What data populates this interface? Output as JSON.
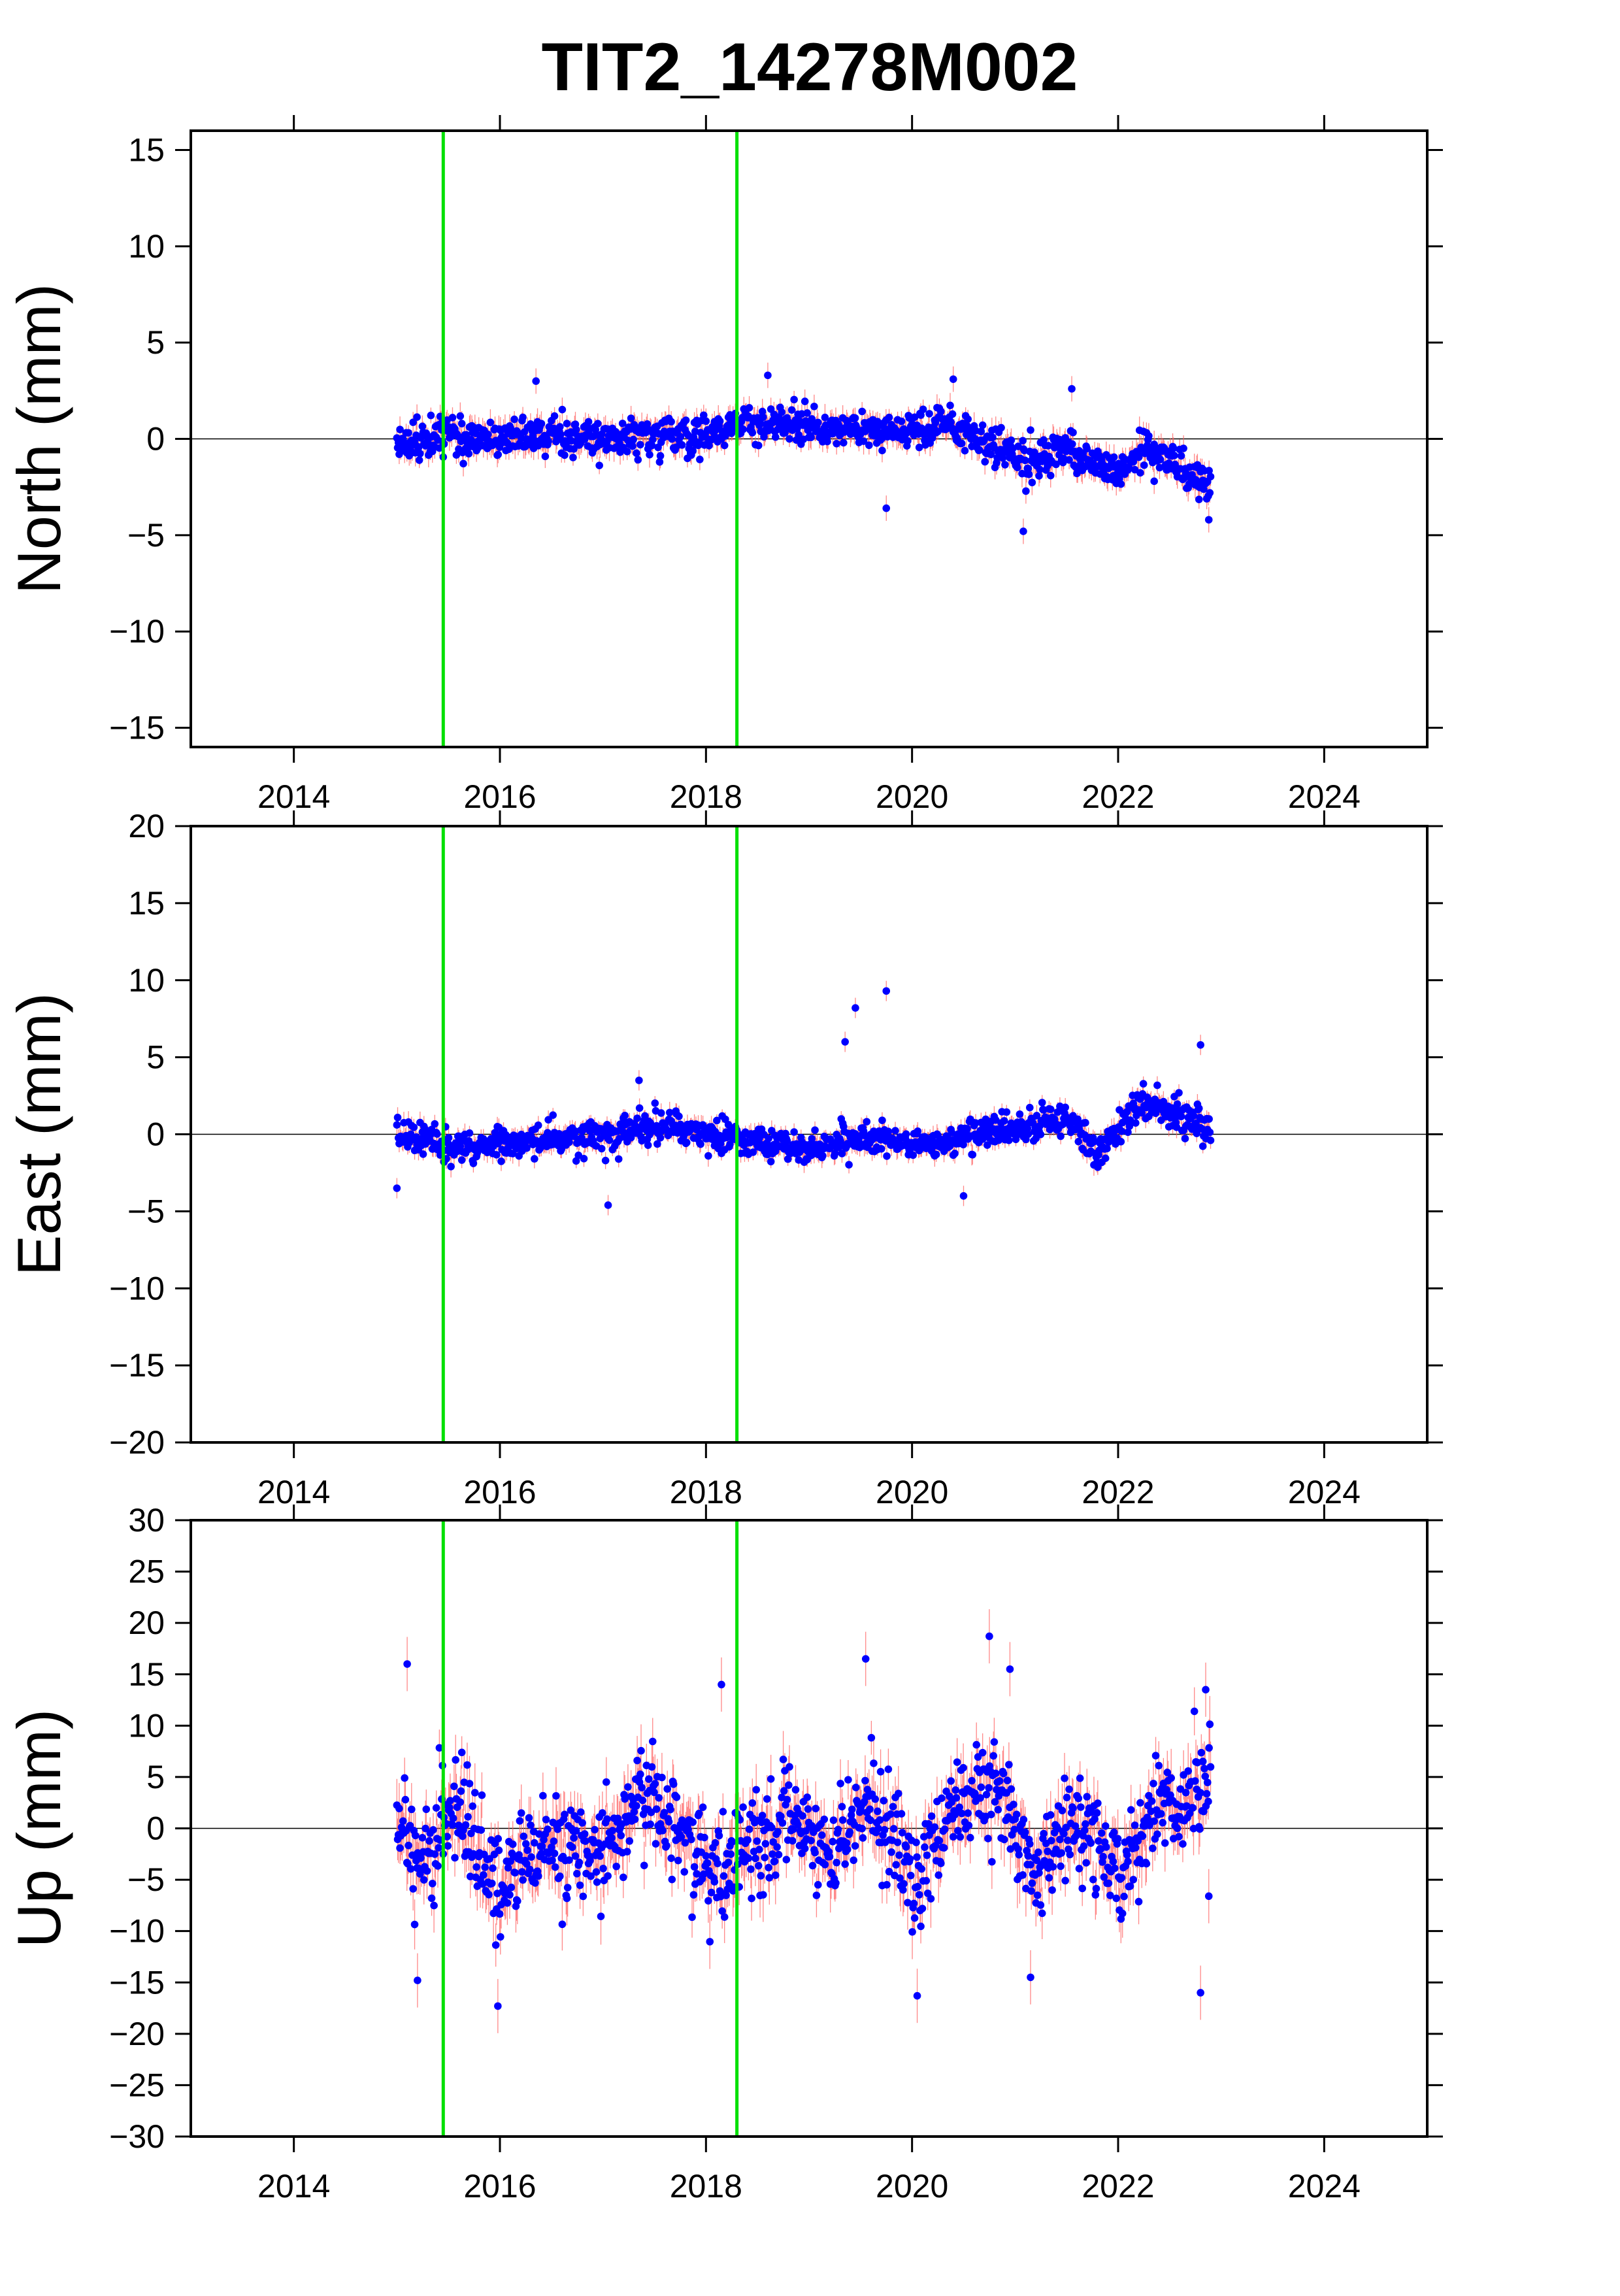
{
  "title": "TIT2_14278M002",
  "colors": {
    "points": "#0000ff",
    "error_bars": "#ff6060",
    "offset_lines": "#00e000",
    "zero_line": "#000000",
    "frame": "#000000"
  },
  "chart_data": [
    {
      "type": "scatter",
      "panel": "north",
      "ylabel": "North (mm)",
      "xlim": [
        2013,
        2025
      ],
      "ylim": [
        -16,
        16
      ],
      "xticks": [
        2014,
        2016,
        2018,
        2020,
        2022,
        2024
      ],
      "yticks": [
        -15,
        -10,
        -5,
        0,
        5,
        10,
        15
      ],
      "ytick_labels": [
        "−15",
        "−10",
        "−5",
        "0",
        "5",
        "10",
        "15"
      ],
      "xtick_labels": [
        "2014",
        "2016",
        "2018",
        "2020",
        "2022",
        "2024"
      ],
      "offset_lines": [
        2015.45,
        2018.3
      ],
      "zero_line": 0,
      "segments": [
        {
          "x": 2015.0,
          "y": -0.3
        },
        {
          "x": 2015.5,
          "y": 0.1
        },
        {
          "x": 2016.0,
          "y": -0.1
        },
        {
          "x": 2016.5,
          "y": 0.2
        },
        {
          "x": 2017.0,
          "y": 0.0
        },
        {
          "x": 2017.5,
          "y": 0.3
        },
        {
          "x": 2018.0,
          "y": 0.0
        },
        {
          "x": 2018.3,
          "y": 0.9
        },
        {
          "x": 2018.8,
          "y": 0.9
        },
        {
          "x": 2019.3,
          "y": 0.5
        },
        {
          "x": 2019.8,
          "y": 0.4
        },
        {
          "x": 2020.3,
          "y": 0.7
        },
        {
          "x": 2020.8,
          "y": -0.4
        },
        {
          "x": 2021.1,
          "y": -1.2
        },
        {
          "x": 2021.5,
          "y": -0.6
        },
        {
          "x": 2021.9,
          "y": -1.8
        },
        {
          "x": 2022.3,
          "y": -0.5
        },
        {
          "x": 2022.9,
          "y": -2.3
        }
      ],
      "spread": 0.8,
      "err": 0.55,
      "outliers": [
        {
          "x": 2021.08,
          "y": -4.8
        },
        {
          "x": 2022.35,
          "y": -2.2
        },
        {
          "x": 2019.75,
          "y": -3.6
        },
        {
          "x": 2018.6,
          "y": 3.3
        },
        {
          "x": 2020.4,
          "y": 3.1
        },
        {
          "x": 2016.35,
          "y": 3.0
        },
        {
          "x": 2021.55,
          "y": 2.6
        },
        {
          "x": 2022.88,
          "y": -4.2
        }
      ]
    },
    {
      "type": "scatter",
      "panel": "east",
      "ylabel": "East (mm)",
      "xlim": [
        2013,
        2025
      ],
      "ylim": [
        -20,
        20
      ],
      "xticks": [
        2014,
        2016,
        2018,
        2020,
        2022,
        2024
      ],
      "yticks": [
        -20,
        -15,
        -10,
        -5,
        0,
        5,
        10,
        15,
        20
      ],
      "ytick_labels": [
        "−20",
        "−15",
        "−10",
        "−5",
        "0",
        "5",
        "10",
        "15",
        "20"
      ],
      "xtick_labels": [
        "2014",
        "2016",
        "2018",
        "2020",
        "2022",
        "2024"
      ],
      "offset_lines": [
        2015.45,
        2018.3
      ],
      "zero_line": 0,
      "segments": [
        {
          "x": 2015.0,
          "y": -0.2
        },
        {
          "x": 2015.5,
          "y": -0.8
        },
        {
          "x": 2016.0,
          "y": -0.6
        },
        {
          "x": 2016.5,
          "y": -0.4
        },
        {
          "x": 2017.0,
          "y": 0.0
        },
        {
          "x": 2017.5,
          "y": 0.6
        },
        {
          "x": 2018.0,
          "y": 0.2
        },
        {
          "x": 2018.5,
          "y": -0.5
        },
        {
          "x": 2019.0,
          "y": -1.0
        },
        {
          "x": 2019.5,
          "y": -0.1
        },
        {
          "x": 2020.0,
          "y": -0.6
        },
        {
          "x": 2020.5,
          "y": -0.2
        },
        {
          "x": 2021.0,
          "y": 0.5
        },
        {
          "x": 2021.5,
          "y": 1.0
        },
        {
          "x": 2021.8,
          "y": -1.2
        },
        {
          "x": 2022.2,
          "y": 2.0
        },
        {
          "x": 2022.6,
          "y": 1.2
        },
        {
          "x": 2022.9,
          "y": 0.3
        }
      ],
      "spread": 0.85,
      "err": 0.55,
      "outliers": [
        {
          "x": 2019.35,
          "y": 6.0
        },
        {
          "x": 2019.45,
          "y": 8.2
        },
        {
          "x": 2019.75,
          "y": 9.3
        },
        {
          "x": 2017.05,
          "y": -4.6
        },
        {
          "x": 2015.0,
          "y": -3.5
        },
        {
          "x": 2022.8,
          "y": 5.8
        },
        {
          "x": 2020.5,
          "y": -4.0
        },
        {
          "x": 2017.35,
          "y": 3.5
        }
      ]
    },
    {
      "type": "scatter",
      "panel": "up",
      "ylabel": "Up (mm)",
      "xlim": [
        2013,
        2025
      ],
      "ylim": [
        -30,
        30
      ],
      "xticks": [
        2014,
        2016,
        2018,
        2020,
        2022,
        2024
      ],
      "yticks": [
        -30,
        -25,
        -20,
        -15,
        -10,
        -5,
        0,
        5,
        10,
        15,
        20,
        25,
        30
      ],
      "ytick_labels": [
        "−30",
        "−25",
        "−20",
        "−15",
        "−10",
        "−5",
        "0",
        "5",
        "10",
        "15",
        "20",
        "25",
        "30"
      ],
      "xtick_labels": [
        "2014",
        "2016",
        "2018",
        "2020",
        "2022",
        "2024"
      ],
      "offset_lines": [
        2015.45,
        2018.3
      ],
      "zero_line": 0,
      "segments": [
        {
          "x": 2015.0,
          "y": 0.0
        },
        {
          "x": 2015.2,
          "y": -4.0
        },
        {
          "x": 2015.6,
          "y": 2.0
        },
        {
          "x": 2016.0,
          "y": -6.0
        },
        {
          "x": 2016.4,
          "y": -1.0
        },
        {
          "x": 2016.9,
          "y": -3.0
        },
        {
          "x": 2017.4,
          "y": 3.0
        },
        {
          "x": 2017.9,
          "y": -2.0
        },
        {
          "x": 2018.1,
          "y": -5.0
        },
        {
          "x": 2018.5,
          "y": -1.0
        },
        {
          "x": 2018.9,
          "y": 1.0
        },
        {
          "x": 2019.2,
          "y": -3.0
        },
        {
          "x": 2019.6,
          "y": 3.0
        },
        {
          "x": 2020.0,
          "y": -5.0
        },
        {
          "x": 2020.4,
          "y": 2.0
        },
        {
          "x": 2020.8,
          "y": 5.0
        },
        {
          "x": 2021.2,
          "y": -5.0
        },
        {
          "x": 2021.6,
          "y": 1.0
        },
        {
          "x": 2022.0,
          "y": -4.0
        },
        {
          "x": 2022.4,
          "y": 2.0
        },
        {
          "x": 2022.9,
          "y": 5.0
        }
      ],
      "spread": 4.0,
      "err": 2.2,
      "outliers": [
        {
          "x": 2015.1,
          "y": 16.0
        },
        {
          "x": 2015.2,
          "y": -14.8
        },
        {
          "x": 2015.98,
          "y": -17.3
        },
        {
          "x": 2019.55,
          "y": 16.5
        },
        {
          "x": 2020.05,
          "y": -16.3
        },
        {
          "x": 2020.75,
          "y": 18.7
        },
        {
          "x": 2020.95,
          "y": 15.5
        },
        {
          "x": 2022.8,
          "y": -16.0
        },
        {
          "x": 2021.15,
          "y": -14.5
        },
        {
          "x": 2018.15,
          "y": 14.0
        },
        {
          "x": 2022.85,
          "y": 13.5
        },
        {
          "x": 2022.88,
          "y": -6.6
        }
      ]
    }
  ]
}
